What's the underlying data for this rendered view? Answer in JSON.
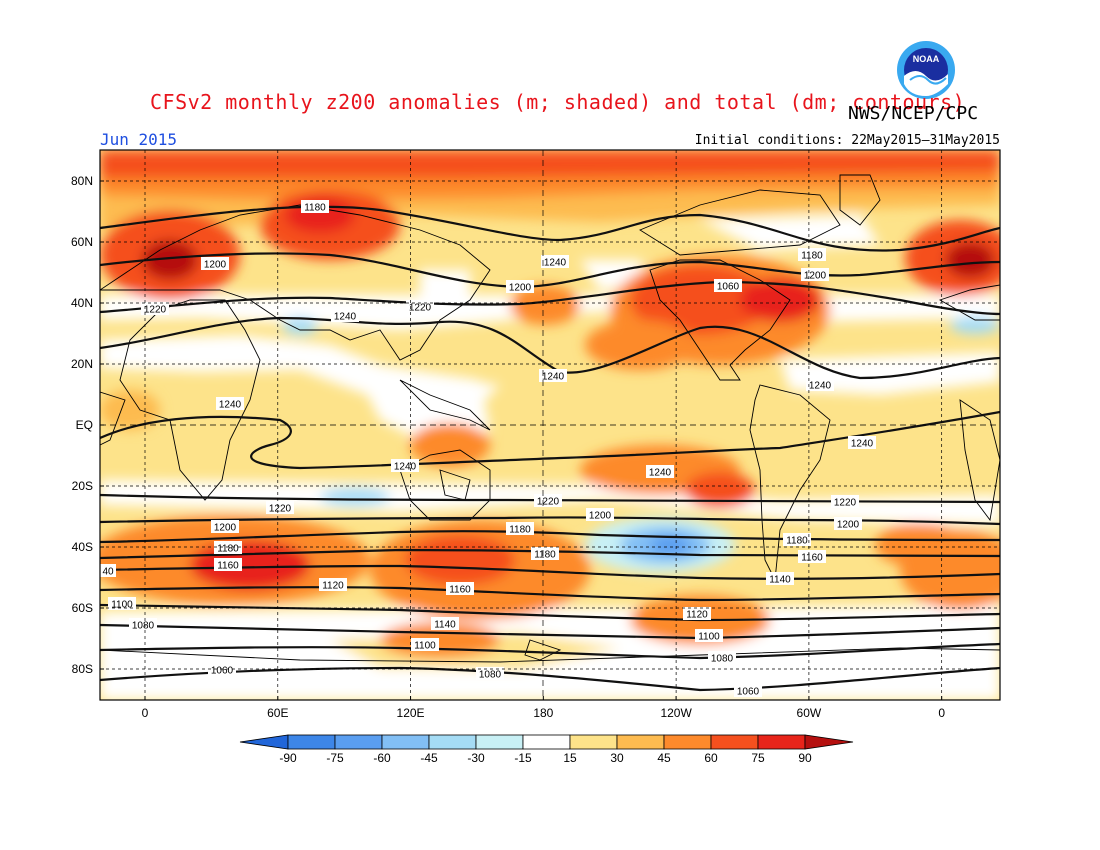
{
  "header": {
    "title": "CFSv2 monthly z200 anomalies (m; shaded) and total (dm; contours)",
    "agency": "NWS/NCEP/CPC",
    "logo_text": "NOAA",
    "month": "Jun 2015",
    "initial_conditions": "Initial conditions: 22May2015–31May2015"
  },
  "map": {
    "lat_labels": [
      "80N",
      "60N",
      "40N",
      "20N",
      "EQ",
      "20S",
      "40S",
      "60S",
      "80S"
    ],
    "lon_labels": [
      "0",
      "60E",
      "120E",
      "180",
      "120W",
      "60W",
      "0"
    ],
    "contour_labels": [
      "1180",
      "1200",
      "1220",
      "1240",
      "1240",
      "1240",
      "1220",
      "1200",
      "1180",
      "1160",
      "40",
      "1120",
      "1100",
      "1080",
      "1060",
      "1180",
      "1200",
      "1220",
      "1240",
      "1240",
      "1240",
      "1220",
      "1200",
      "1180",
      "1160",
      "1140",
      "1100",
      "1080",
      "1060",
      "1180",
      "1200",
      "1240",
      "1240",
      "1220",
      "1200",
      "1180",
      "1160",
      "1140",
      "1120",
      "1100",
      "1080",
      "1060"
    ]
  },
  "colorbar": {
    "ticks": [
      "-90",
      "-75",
      "-60",
      "-45",
      "-30",
      "-15",
      "15",
      "30",
      "45",
      "60",
      "75",
      "90"
    ],
    "colors": [
      "#2166d9",
      "#3d86e8",
      "#5a9ef0",
      "#82bff5",
      "#a5dcf5",
      "#c8f0f5",
      "#ffffff",
      "#fde38a",
      "#fdbb50",
      "#fd8a2c",
      "#f5501e",
      "#e8241a",
      "#b5100f"
    ]
  }
}
